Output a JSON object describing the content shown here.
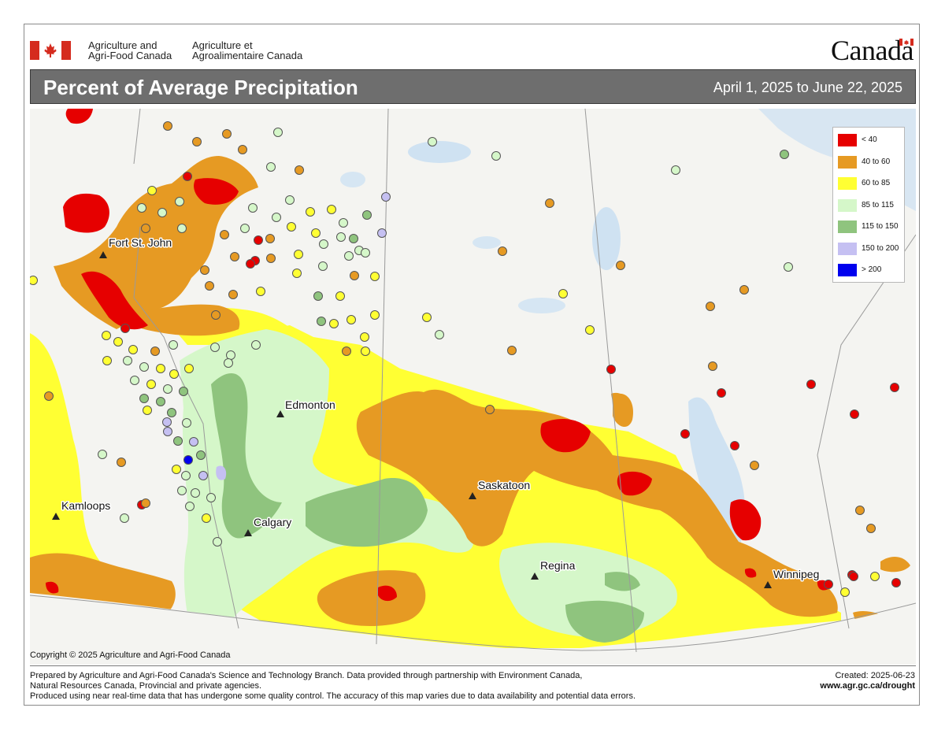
{
  "header": {
    "dept_en_line1": "Agriculture and",
    "dept_en_line2": "Agri-Food Canada",
    "dept_fr_line1": "Agriculture et",
    "dept_fr_line2": "Agroalimentaire Canada",
    "wordmark": "Canada"
  },
  "title": "Percent of Average Precipitation",
  "date_range": "April 1, 2025 to June 22, 2025",
  "legend": [
    {
      "label": "< 40",
      "color": "#e60000"
    },
    {
      "label": "40 to 60",
      "color": "#e69a23"
    },
    {
      "label": "60 to 85",
      "color": "#ffff33"
    },
    {
      "label": "85 to 115",
      "color": "#d5f7c9"
    },
    {
      "label": "115 to 150",
      "color": "#8fc47e"
    },
    {
      "label": "150 to 200",
      "color": "#c5c0f2"
    },
    {
      "label": "> 200",
      "color": "#0000ee"
    }
  ],
  "cities": {
    "fort_st_john": "Fort St. John",
    "edmonton": "Edmonton",
    "kamloops": "Kamloops",
    "calgary": "Calgary",
    "saskatoon": "Saskatoon",
    "regina": "Regina",
    "winnipeg": "Winnipeg"
  },
  "copyright": "Copyright © 2025 Agriculture and Agri-Food Canada",
  "footer": {
    "line1": "Prepared by Agriculture and Agri-Food Canada's Science and Technology Branch. Data provided through partnership with Environment Canada,",
    "line2": "Natural Resources Canada, Provincial and private agencies.",
    "line3": "Produced using near real-time data that has undergone some quality control. The accuracy of this map varies due to data availability and potential data errors.",
    "created": "Created: 2025-06-23",
    "url": "www.agr.gc.ca/drought"
  }
}
